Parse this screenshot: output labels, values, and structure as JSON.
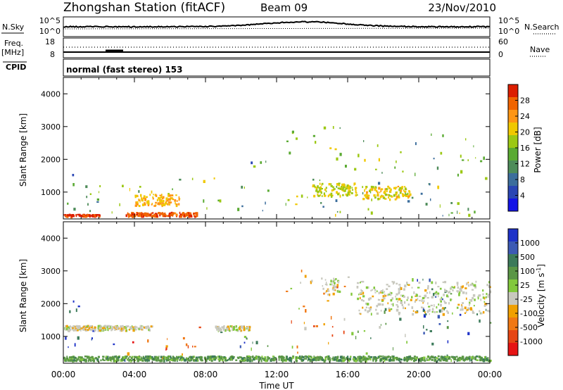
{
  "header": {
    "station": "Zhongshan Station (fitACF)",
    "beam": "Beam 09",
    "date": "23/Nov/2010"
  },
  "strips": {
    "nsky_label": "N.Sky",
    "nsky_ticks": [
      "10^5",
      "10^0"
    ],
    "nsearch_label": "N.Search",
    "nsearch_ticks": [
      "10^5",
      "10^0"
    ],
    "freq_label": "Freq.",
    "freq_unit": "[MHz]",
    "freq_ticks": [
      "18",
      "8"
    ],
    "nave_label": "Nave",
    "nave_ticks": [
      "60",
      "0"
    ],
    "cpid_label": "CPID",
    "cpid_text": "normal (fast stereo) 153"
  },
  "colors": {
    "power": [
      "#1414e6",
      "#2a46b4",
      "#3c6e9c",
      "#4e8c5a",
      "#5aaa32",
      "#9cc814",
      "#f0c800",
      "#ff9614",
      "#f06400",
      "#dc1e00"
    ],
    "velocity": [
      "#1e32c8",
      "#3c5ab4",
      "#3c7a5a",
      "#5a9646",
      "#82c83c",
      "#c8c8be",
      "#f0a000",
      "#f07814",
      "#e64614",
      "#e61414"
    ]
  },
  "chart_data": [
    {
      "type": "heatmap",
      "name": "power",
      "ylabel": "Slant Range [km]",
      "ylim": [
        180,
        4500
      ],
      "yticks": [
        1000,
        2000,
        3000,
        4000
      ],
      "xlim": [
        0,
        24
      ],
      "colorbar": {
        "label": "Power [dB]",
        "range": [
          0,
          32
        ],
        "ticks": [
          4,
          8,
          12,
          16,
          20,
          24,
          28
        ]
      },
      "regions": [
        {
          "t": [
            0.0,
            0.7
          ],
          "r": [
            300,
            2100
          ],
          "level": 9
        },
        {
          "t": [
            0.7,
            3.0
          ],
          "r": [
            300,
            1300
          ],
          "level": 11
        },
        {
          "t": [
            3.0,
            8.5
          ],
          "r": [
            300,
            1500
          ],
          "level": 15
        },
        {
          "t": [
            8.5,
            11.5
          ],
          "r": [
            400,
            2000
          ],
          "level": 10
        },
        {
          "t": [
            12.5,
            16.0
          ],
          "r": [
            300,
            3100
          ],
          "level": 13
        },
        {
          "t": [
            16.0,
            19.0
          ],
          "r": [
            300,
            2600
          ],
          "level": 14
        },
        {
          "t": [
            19.0,
            24.0
          ],
          "r": [
            300,
            2800
          ],
          "level": 12
        }
      ],
      "bands": [
        {
          "t": [
            0.0,
            2.0
          ],
          "r": [
            280,
            340
          ],
          "level": 28
        },
        {
          "t": [
            3.5,
            7.5
          ],
          "r": [
            280,
            400
          ],
          "level": 26
        },
        {
          "t": [
            4.0,
            6.5
          ],
          "r": [
            600,
            950
          ],
          "level": 21
        },
        {
          "t": [
            14.0,
            16.5
          ],
          "r": [
            900,
            1300
          ],
          "level": 18
        },
        {
          "t": [
            16.8,
            19.5
          ],
          "r": [
            800,
            1200
          ],
          "level": 19
        }
      ]
    },
    {
      "type": "heatmap",
      "name": "velocity",
      "ylabel": "Slant Range [km]",
      "ylim": [
        180,
        4500
      ],
      "yticks": [
        1000,
        2000,
        3000,
        4000
      ],
      "xlim": [
        0,
        24
      ],
      "xticks": [
        "00:00",
        "04:00",
        "08:00",
        "12:00",
        "16:00",
        "20:00",
        "00:00"
      ],
      "xlabel": "Time UT",
      "colorbar": {
        "label": "Velocity [m s",
        "label_sup": "-1",
        "label_end": "]",
        "ticks": [
          "1000",
          "500",
          "100",
          "25",
          "-25",
          "-100",
          "-500",
          "-1000"
        ]
      },
      "regions": [
        {
          "t": [
            0.0,
            1.5
          ],
          "r": [
            300,
            2200
          ],
          "level": 0
        },
        {
          "t": [
            1.5,
            3.5
          ],
          "r": [
            300,
            1300
          ],
          "level": 1
        },
        {
          "t": [
            3.5,
            8.5
          ],
          "r": [
            300,
            1300
          ],
          "level": 7
        },
        {
          "t": [
            8.5,
            11.5
          ],
          "r": [
            300,
            1400
          ],
          "level": 2
        },
        {
          "t": [
            12.5,
            16.0
          ],
          "r": [
            400,
            3100
          ],
          "level": 6
        },
        {
          "t": [
            16.0,
            19.5
          ],
          "r": [
            300,
            2500
          ],
          "level": 3
        },
        {
          "t": [
            19.5,
            24.0
          ],
          "r": [
            300,
            2800
          ],
          "level": 2
        }
      ],
      "bands": [
        {
          "t": [
            0.0,
            5.0
          ],
          "r": [
            1200,
            1350
          ],
          "level": 5
        },
        {
          "t": [
            8.5,
            10.5
          ],
          "r": [
            1200,
            1350
          ],
          "level": 5
        },
        {
          "t": [
            14.5,
            15.5
          ],
          "r": [
            2300,
            2800
          ],
          "level": 5
        },
        {
          "t": [
            16.5,
            24.0
          ],
          "r": [
            1700,
            2700
          ],
          "level": 5
        },
        {
          "t": [
            0.0,
            24.0
          ],
          "r": [
            280,
            420
          ],
          "level": 3
        }
      ]
    }
  ]
}
